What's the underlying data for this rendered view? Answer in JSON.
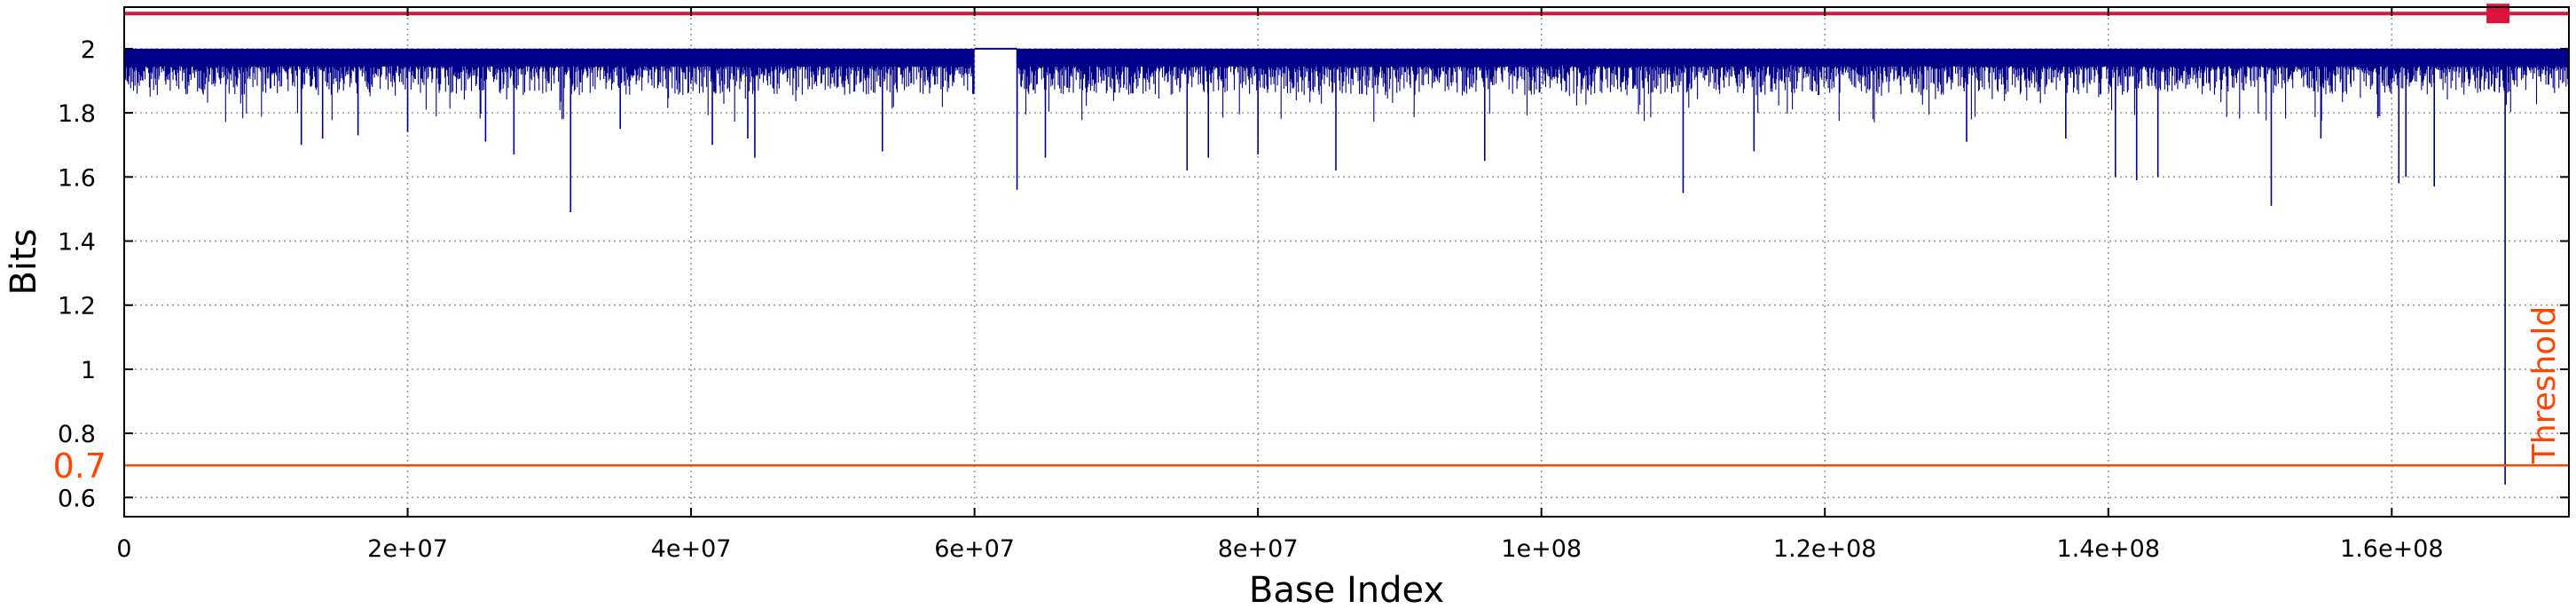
{
  "chart_data": {
    "type": "line",
    "title": "",
    "xlabel": "Base Index",
    "ylabel": "Bits",
    "xlim": [
      0,
      172500000
    ],
    "ylim": [
      0.54,
      2.13
    ],
    "x_ticks": [
      0,
      20000000,
      40000000,
      60000000,
      80000000,
      100000000,
      120000000,
      140000000,
      160000000
    ],
    "x_tick_labels": [
      "0",
      "2e+07",
      "4e+07",
      "6e+07",
      "8e+07",
      "1e+08",
      "1.2e+08",
      "1.4e+08",
      "1.6e+08"
    ],
    "y_ticks": [
      0.6,
      0.8,
      1.0,
      1.2,
      1.4,
      1.6,
      1.8,
      2.0
    ],
    "y_tick_labels": [
      "0.6",
      "0.8",
      "1",
      "1.2",
      "1.4",
      "1.6",
      "1.8",
      "2"
    ],
    "grid": true,
    "grid_style": "dotted",
    "series": [
      {
        "color": "#00008b",
        "typical_band": [
          1.9,
          2.0
        ],
        "flat_region": {
          "x": [
            60000000,
            63000000
          ],
          "y": 2.0
        },
        "notable_dips": [
          {
            "x": 12500000,
            "y": 1.7
          },
          {
            "x": 14000000,
            "y": 1.72
          },
          {
            "x": 16500000,
            "y": 1.73
          },
          {
            "x": 20000000,
            "y": 1.74
          },
          {
            "x": 25500000,
            "y": 1.71
          },
          {
            "x": 27500000,
            "y": 1.67
          },
          {
            "x": 31500000,
            "y": 1.49
          },
          {
            "x": 35000000,
            "y": 1.75
          },
          {
            "x": 41500000,
            "y": 1.7
          },
          {
            "x": 44000000,
            "y": 1.72
          },
          {
            "x": 44500000,
            "y": 1.66
          },
          {
            "x": 53500000,
            "y": 1.68
          },
          {
            "x": 63000000,
            "y": 1.56
          },
          {
            "x": 65000000,
            "y": 1.66
          },
          {
            "x": 75000000,
            "y": 1.62
          },
          {
            "x": 76500000,
            "y": 1.66
          },
          {
            "x": 80000000,
            "y": 1.67
          },
          {
            "x": 85500000,
            "y": 1.62
          },
          {
            "x": 96000000,
            "y": 1.65
          },
          {
            "x": 110000000,
            "y": 1.55
          },
          {
            "x": 115000000,
            "y": 1.68
          },
          {
            "x": 130000000,
            "y": 1.71
          },
          {
            "x": 137000000,
            "y": 1.72
          },
          {
            "x": 140500000,
            "y": 1.6
          },
          {
            "x": 142000000,
            "y": 1.59
          },
          {
            "x": 143500000,
            "y": 1.6
          },
          {
            "x": 151500000,
            "y": 1.51
          },
          {
            "x": 155000000,
            "y": 1.72
          },
          {
            "x": 160500000,
            "y": 1.58
          },
          {
            "x": 161000000,
            "y": 1.6
          },
          {
            "x": 163000000,
            "y": 1.57
          },
          {
            "x": 168000000,
            "y": 0.64
          }
        ]
      }
    ],
    "threshold": {
      "value": 0.7,
      "label": "Threshold",
      "value_label": "0.7",
      "color": "#ff4500"
    },
    "top_line": {
      "value": 2.11,
      "color": "#dc143c"
    },
    "top_marker": {
      "x": 167500000,
      "y": 2.11,
      "color": "#dc143c"
    }
  }
}
